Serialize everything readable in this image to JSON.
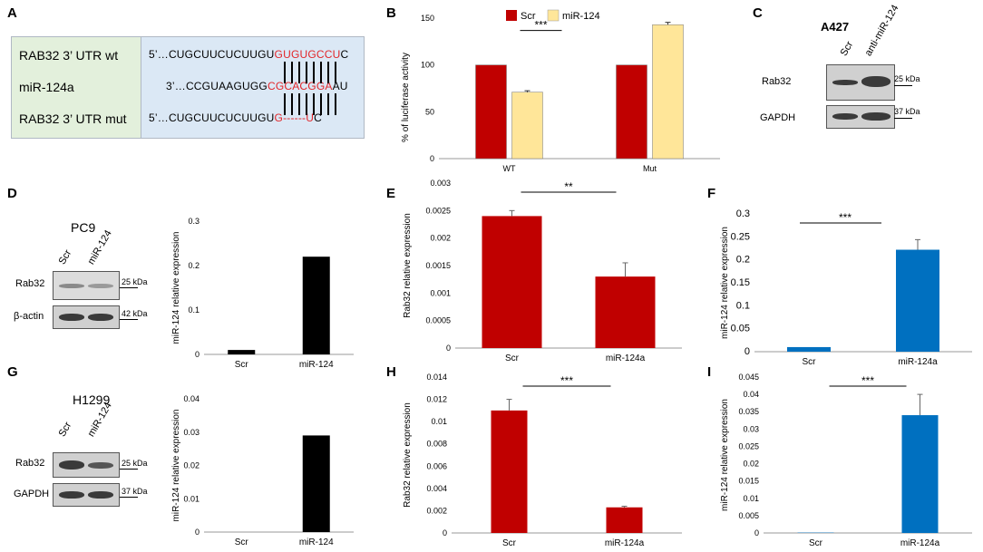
{
  "panel_labels": {
    "a": "A",
    "b": "B",
    "c": "C",
    "d": "D",
    "e": "E",
    "f": "F",
    "g": "G",
    "h": "H",
    "i": "I"
  },
  "panel_a": {
    "row1_label": "RAB32 3’ UTR wt",
    "row2_label": "miR-124a",
    "row3_label": "RAB32 3’ UTR mut",
    "seq1_prefix": "5’…CUGCUUCUCUUGU",
    "seq1_red": "GUGUGCCU",
    "seq1_suffix": "C",
    "seq2_prefix": "3’…CCGUAAGUGG",
    "seq2_red": "CGCACGGA",
    "seq2_suffix": "AU",
    "seq3_prefix": "5’…CUGCUUCUCUUGU",
    "seq3_red": "G------U",
    "seq3_suffix": "C"
  },
  "blots": {
    "c": {
      "title": "A427",
      "lane1": "Scr",
      "lane2": "anti-miR-124",
      "row1": "Rab32",
      "row2": "GAPDH",
      "kda1": "25 kDa",
      "kda2": "37 kDa"
    },
    "d": {
      "title": "PC9",
      "lane1": "Scr",
      "lane2": "miR-124",
      "row1": "Rab32",
      "row2": "β-actin",
      "kda1": "25 kDa",
      "kda2": "42 kDa"
    },
    "g": {
      "title": "H1299",
      "lane1": "Scr",
      "lane2": "miR-124",
      "row1": "Rab32",
      "row2": "GAPDH",
      "kda1": "25 kDa",
      "kda2": "37 kDa"
    }
  },
  "colors": {
    "red": "#c00000",
    "yellow": "#ffe699",
    "blue": "#0070c0",
    "black": "#000000"
  },
  "chart_data": [
    {
      "id": "B",
      "type": "bar",
      "ylabel": "% of luciferase activity",
      "categories": [
        "WT",
        "Mut"
      ],
      "series": [
        {
          "name": "Scr",
          "values": [
            100,
            100
          ],
          "errors": [
            0,
            0
          ]
        },
        {
          "name": "miR-124",
          "values": [
            71,
            143
          ],
          "errors": [
            1.5,
            2.5
          ]
        }
      ],
      "ylim": [
        0,
        150
      ],
      "yticks": [
        0,
        50,
        100,
        150
      ],
      "annotation": "***",
      "legend": "top"
    },
    {
      "id": "D",
      "type": "bar",
      "ylabel": "miR-124 relative expression",
      "categories": [
        "Scr",
        "miR-124"
      ],
      "values": [
        0.01,
        0.22
      ],
      "ylim": [
        0,
        0.3
      ],
      "yticks": [
        "0",
        "0.1",
        "0.2",
        "0.3"
      ]
    },
    {
      "id": "E",
      "type": "bar",
      "ylabel": "Rab32 relative expression",
      "categories": [
        "Scr",
        "miR-124a"
      ],
      "values": [
        0.0024,
        0.0013
      ],
      "errors": [
        0.0001,
        0.00025
      ],
      "ylim": [
        0,
        0.003
      ],
      "yticks": [
        "0",
        "0.0005",
        "0.001",
        "0.0015",
        "0.002",
        "0.0025",
        "0.003"
      ],
      "annotation": "**"
    },
    {
      "id": "F",
      "type": "bar",
      "ylabel": "miR-124 relative expression",
      "categories": [
        "Scr",
        "miR-124a"
      ],
      "values": [
        0.01,
        0.222
      ],
      "errors": [
        0,
        0.022
      ],
      "ylim": [
        0,
        0.3
      ],
      "yticks": [
        "0",
        "0.05",
        "0.1",
        "0.15",
        "0.2",
        "0.25",
        "0.3"
      ],
      "annotation": "***"
    },
    {
      "id": "G",
      "type": "bar",
      "ylabel": "miR-124 relative expression",
      "categories": [
        "Scr",
        "miR-124"
      ],
      "values": [
        0,
        0.029
      ],
      "ylim": [
        0,
        0.04
      ],
      "yticks": [
        "0",
        "0.01",
        "0.02",
        "0.03",
        "0.04"
      ]
    },
    {
      "id": "H",
      "type": "bar",
      "ylabel": "Rab32 relative expression",
      "categories": [
        "Scr",
        "miR-124a"
      ],
      "values": [
        0.011,
        0.0023
      ],
      "errors": [
        0.001,
        0.0001
      ],
      "ylim": [
        0,
        0.014
      ],
      "yticks": [
        "0",
        "0.002",
        "0.004",
        "0.006",
        "0.008",
        "0.01",
        "0.012",
        "0.014"
      ],
      "annotation": "***"
    },
    {
      "id": "I",
      "type": "bar",
      "ylabel": "miR-124 relative expression",
      "categories": [
        "Scr",
        "miR-124a"
      ],
      "values": [
        0.0001,
        0.034
      ],
      "errors": [
        0,
        0.006
      ],
      "ylim": [
        0,
        0.045
      ],
      "yticks": [
        "0",
        "0.005",
        "0.01",
        "0.015",
        "0.02",
        "0.025",
        "0.03",
        "0.035",
        "0.04",
        "0.045"
      ],
      "annotation": "***"
    }
  ]
}
